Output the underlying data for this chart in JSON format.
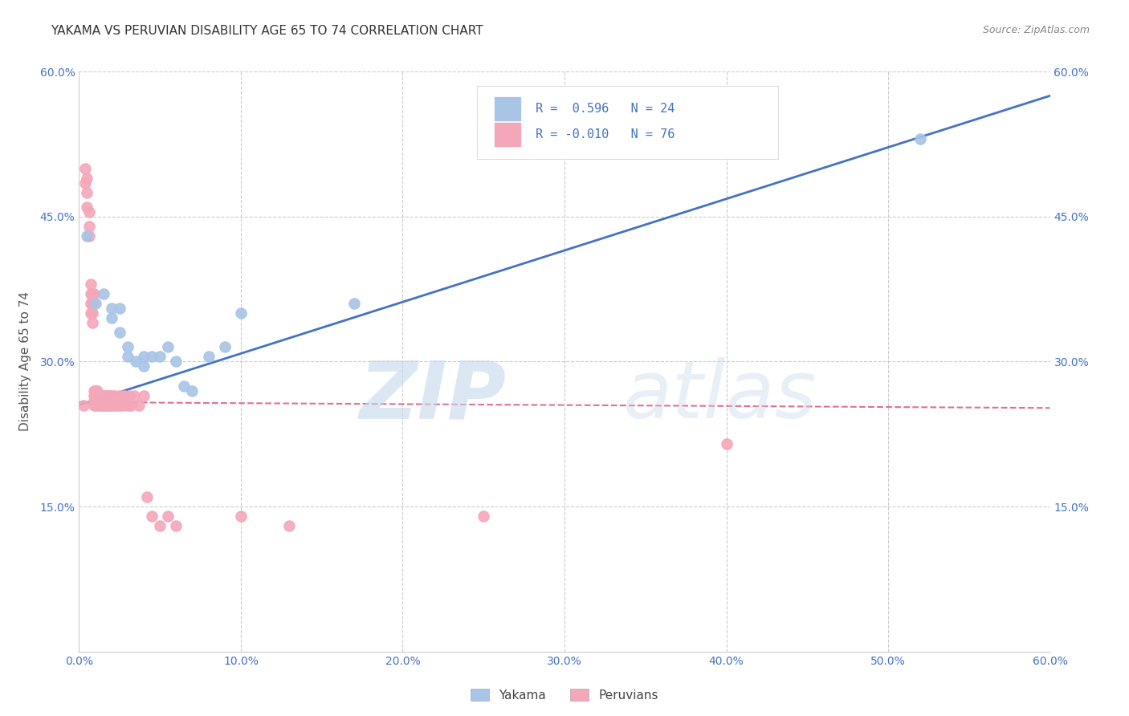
{
  "title": "YAKAMA VS PERUVIAN DISABILITY AGE 65 TO 74 CORRELATION CHART",
  "source": "Source: ZipAtlas.com",
  "ylabel": "Disability Age 65 to 74",
  "xlim": [
    0.0,
    0.6
  ],
  "ylim": [
    0.0,
    0.6
  ],
  "yakama_color": "#a8c4e6",
  "peruvian_color": "#f4a7b9",
  "yakama_line_color": "#4472c4",
  "peruvian_line_color": "#e07090",
  "background_color": "#ffffff",
  "grid_color": "#cccccc",
  "yakama_scatter_x": [
    0.005,
    0.01,
    0.015,
    0.02,
    0.02,
    0.025,
    0.025,
    0.03,
    0.03,
    0.035,
    0.04,
    0.04,
    0.045,
    0.05,
    0.055,
    0.06,
    0.065,
    0.07,
    0.08,
    0.09,
    0.1,
    0.17,
    0.52
  ],
  "yakama_scatter_y": [
    0.43,
    0.36,
    0.37,
    0.355,
    0.345,
    0.355,
    0.33,
    0.305,
    0.315,
    0.3,
    0.295,
    0.305,
    0.305,
    0.305,
    0.315,
    0.3,
    0.275,
    0.27,
    0.305,
    0.315,
    0.35,
    0.36,
    0.53
  ],
  "peruvian_scatter_x": [
    0.003,
    0.004,
    0.004,
    0.005,
    0.005,
    0.005,
    0.006,
    0.006,
    0.006,
    0.007,
    0.007,
    0.007,
    0.007,
    0.008,
    0.008,
    0.008,
    0.008,
    0.009,
    0.009,
    0.009,
    0.009,
    0.009,
    0.01,
    0.01,
    0.01,
    0.01,
    0.01,
    0.011,
    0.011,
    0.011,
    0.012,
    0.012,
    0.012,
    0.013,
    0.013,
    0.013,
    0.014,
    0.014,
    0.014,
    0.015,
    0.015,
    0.015,
    0.016,
    0.016,
    0.016,
    0.017,
    0.017,
    0.018,
    0.018,
    0.019,
    0.019,
    0.02,
    0.02,
    0.022,
    0.022,
    0.024,
    0.025,
    0.025,
    0.026,
    0.027,
    0.028,
    0.03,
    0.031,
    0.032,
    0.034,
    0.037,
    0.04,
    0.042,
    0.045,
    0.05,
    0.055,
    0.06,
    0.1,
    0.13,
    0.25,
    0.4
  ],
  "peruvian_scatter_y": [
    0.255,
    0.5,
    0.485,
    0.49,
    0.475,
    0.46,
    0.455,
    0.44,
    0.43,
    0.38,
    0.35,
    0.36,
    0.37,
    0.34,
    0.35,
    0.36,
    0.37,
    0.27,
    0.255,
    0.26,
    0.265,
    0.37,
    0.26,
    0.265,
    0.27,
    0.255,
    0.27,
    0.26,
    0.265,
    0.27,
    0.255,
    0.26,
    0.265,
    0.255,
    0.26,
    0.265,
    0.255,
    0.26,
    0.265,
    0.255,
    0.26,
    0.265,
    0.255,
    0.26,
    0.265,
    0.255,
    0.265,
    0.255,
    0.265,
    0.255,
    0.265,
    0.255,
    0.265,
    0.255,
    0.265,
    0.255,
    0.265,
    0.255,
    0.265,
    0.255,
    0.265,
    0.255,
    0.265,
    0.255,
    0.265,
    0.255,
    0.265,
    0.16,
    0.14,
    0.13,
    0.14,
    0.13,
    0.14,
    0.13,
    0.14,
    0.215
  ],
  "yakama_trendline_x": [
    0.0,
    0.6
  ],
  "yakama_trendline_y": [
    0.255,
    0.575
  ],
  "peruvian_trendline_x": [
    0.0,
    0.6
  ],
  "peruvian_trendline_y": [
    0.258,
    0.252
  ]
}
